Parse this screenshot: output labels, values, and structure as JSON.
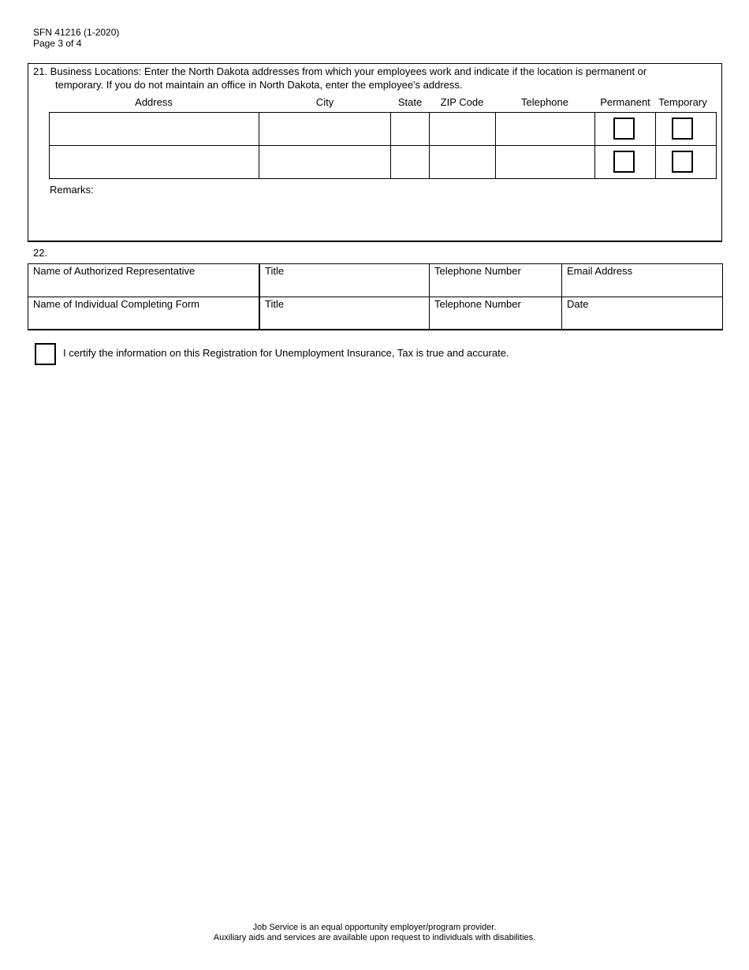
{
  "header": {
    "form_number": "SFN 41216 (1-2020)",
    "page": "Page 3 of 4"
  },
  "section21": {
    "line1": "21. Business Locations: Enter the North Dakota addresses from which your employees work and indicate if the location is permanent or",
    "line2": "temporary. If you do not maintain an office in North Dakota, enter the employee's address.",
    "columns": [
      "Address",
      "City",
      "State",
      "ZIP Code",
      "Telephone",
      "Permanent",
      "Temporary"
    ],
    "remarks_label": "Remarks:"
  },
  "section22": {
    "number": "22.",
    "rows": [
      [
        "Name of Authorized Representative",
        "Title",
        "Telephone Number",
        "Email Address"
      ],
      [
        "Name of Individual Completing Form",
        "Title",
        "Telephone Number",
        "Date"
      ]
    ]
  },
  "certify": {
    "text": "I certify the information on this Registration for Unemployment Insurance, Tax is true and accurate.",
    "checked": false
  },
  "footer": {
    "line1": "Job Service is an equal opportunity employer/program provider.",
    "line2": "Auxiliary aids and services are available upon request to individuals with disabilities."
  }
}
